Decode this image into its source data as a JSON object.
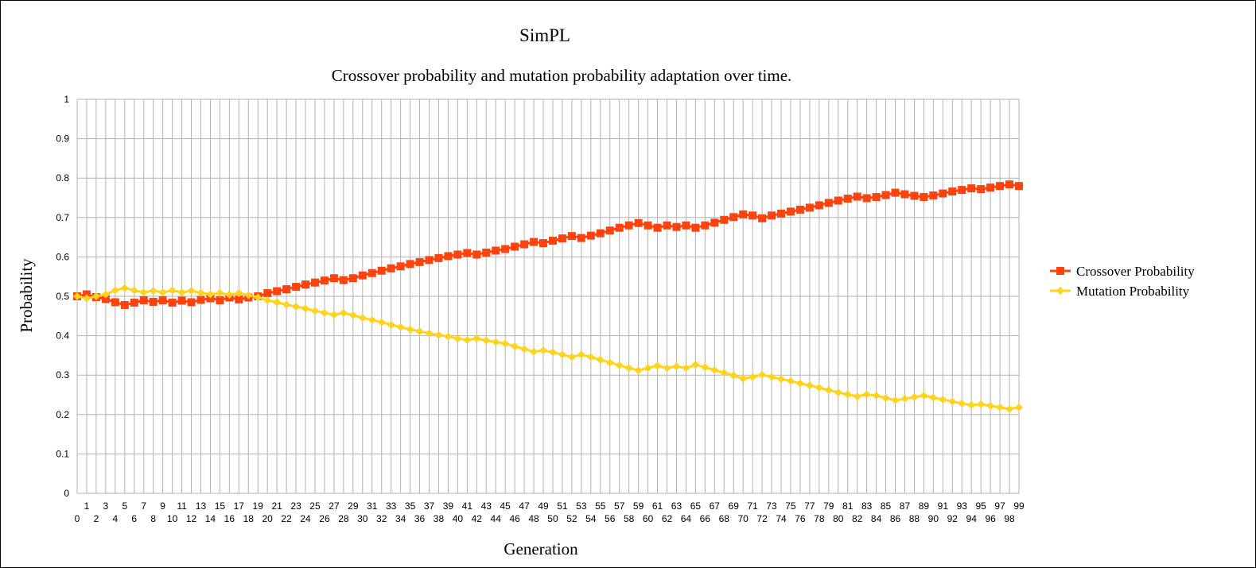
{
  "chart_data": {
    "type": "line",
    "title": "SimPL",
    "subtitle": "Crossover probability and mutation probability adaptation over time.",
    "xlabel": "Generation",
    "ylabel": "Probability",
    "ylim": [
      0,
      1
    ],
    "yticks": [
      "0",
      "0.1",
      "0.2",
      "0.3",
      "0.4",
      "0.5",
      "0.6",
      "0.7",
      "0.8",
      "0.9",
      "1"
    ],
    "x": [
      0,
      1,
      2,
      3,
      4,
      5,
      6,
      7,
      8,
      9,
      10,
      11,
      12,
      13,
      14,
      15,
      16,
      17,
      18,
      19,
      20,
      21,
      22,
      23,
      24,
      25,
      26,
      27,
      28,
      29,
      30,
      31,
      32,
      33,
      34,
      35,
      36,
      37,
      38,
      39,
      40,
      41,
      42,
      43,
      44,
      45,
      46,
      47,
      48,
      49,
      50,
      51,
      52,
      53,
      54,
      55,
      56,
      57,
      58,
      59,
      60,
      61,
      62,
      63,
      64,
      65,
      66,
      67,
      68,
      69,
      70,
      71,
      72,
      73,
      74,
      75,
      76,
      77,
      78,
      79,
      80,
      81,
      82,
      83,
      84,
      85,
      86,
      87,
      88,
      89,
      90,
      91,
      92,
      93,
      94,
      95,
      96,
      97,
      98,
      99
    ],
    "grid": true,
    "legend_position": "right",
    "series": [
      {
        "name": "Crossover Probability",
        "color": "#ff420e",
        "marker": "square",
        "values": [
          0.5,
          0.505,
          0.498,
          0.493,
          0.485,
          0.478,
          0.484,
          0.49,
          0.486,
          0.49,
          0.484,
          0.489,
          0.485,
          0.491,
          0.495,
          0.49,
          0.497,
          0.492,
          0.497,
          0.5,
          0.508,
          0.513,
          0.518,
          0.524,
          0.53,
          0.535,
          0.54,
          0.546,
          0.541,
          0.546,
          0.553,
          0.559,
          0.565,
          0.571,
          0.576,
          0.582,
          0.587,
          0.592,
          0.597,
          0.602,
          0.606,
          0.61,
          0.606,
          0.611,
          0.616,
          0.62,
          0.626,
          0.632,
          0.638,
          0.635,
          0.641,
          0.647,
          0.653,
          0.648,
          0.654,
          0.66,
          0.667,
          0.674,
          0.68,
          0.686,
          0.68,
          0.674,
          0.68,
          0.676,
          0.68,
          0.674,
          0.68,
          0.687,
          0.694,
          0.701,
          0.708,
          0.705,
          0.698,
          0.705,
          0.71,
          0.715,
          0.72,
          0.725,
          0.731,
          0.737,
          0.743,
          0.748,
          0.753,
          0.749,
          0.752,
          0.757,
          0.763,
          0.759,
          0.755,
          0.752,
          0.756,
          0.761,
          0.766,
          0.77,
          0.774,
          0.772,
          0.776,
          0.78,
          0.784,
          0.78
        ]
      },
      {
        "name": "Mutation Probability",
        "color": "#ffd320",
        "marker": "diamond",
        "values": [
          0.5,
          0.495,
          0.5,
          0.505,
          0.515,
          0.521,
          0.515,
          0.51,
          0.514,
          0.51,
          0.515,
          0.51,
          0.514,
          0.509,
          0.505,
          0.508,
          0.504,
          0.508,
          0.503,
          0.497,
          0.49,
          0.485,
          0.479,
          0.474,
          0.469,
          0.463,
          0.458,
          0.453,
          0.458,
          0.452,
          0.445,
          0.44,
          0.434,
          0.428,
          0.422,
          0.416,
          0.411,
          0.406,
          0.402,
          0.398,
          0.393,
          0.389,
          0.393,
          0.388,
          0.384,
          0.38,
          0.373,
          0.366,
          0.359,
          0.363,
          0.358,
          0.352,
          0.346,
          0.352,
          0.346,
          0.339,
          0.332,
          0.325,
          0.318,
          0.312,
          0.318,
          0.324,
          0.318,
          0.322,
          0.318,
          0.326,
          0.32,
          0.313,
          0.306,
          0.299,
          0.291,
          0.295,
          0.301,
          0.295,
          0.29,
          0.285,
          0.279,
          0.274,
          0.268,
          0.262,
          0.256,
          0.251,
          0.246,
          0.251,
          0.248,
          0.242,
          0.236,
          0.24,
          0.244,
          0.248,
          0.243,
          0.238,
          0.233,
          0.228,
          0.224,
          0.226,
          0.222,
          0.218,
          0.214,
          0.218
        ]
      }
    ]
  }
}
